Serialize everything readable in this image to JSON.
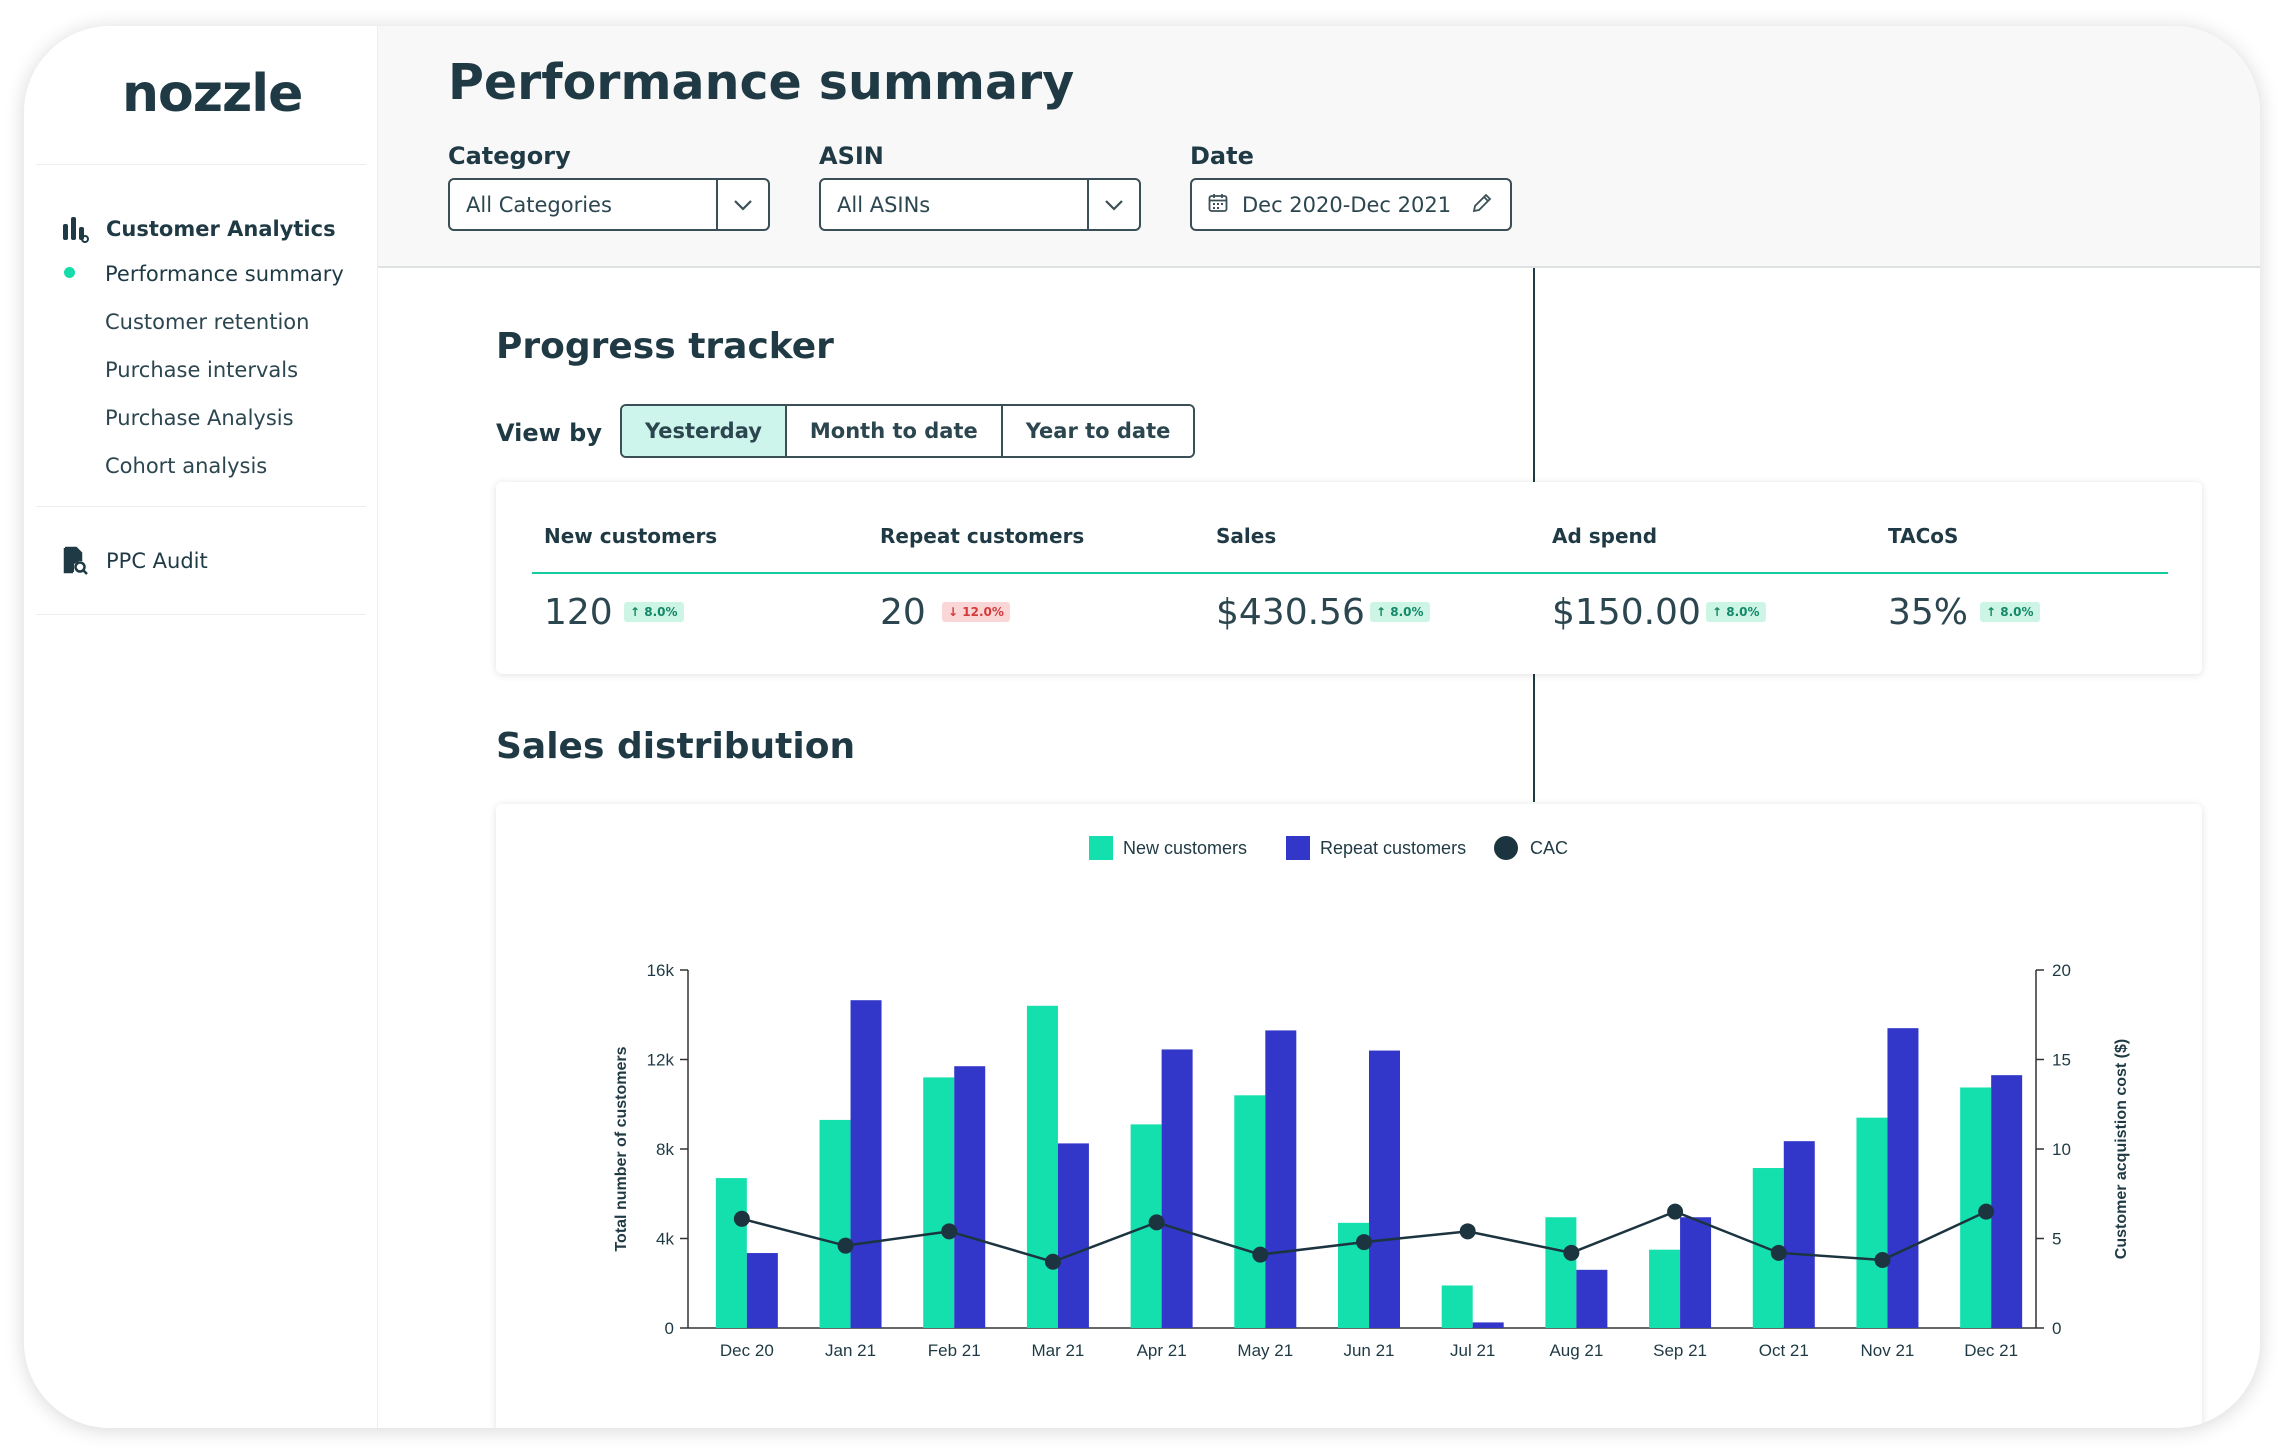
{
  "app": {
    "logo": "nozzle"
  },
  "sidebar": {
    "sections": [
      {
        "label": "Customer Analytics",
        "icon": "bar-chart-icon"
      },
      {
        "label": "PPC Audit",
        "icon": "document-search-icon"
      }
    ],
    "items": [
      {
        "label": "Performance summary",
        "active": true
      },
      {
        "label": "Customer retention"
      },
      {
        "label": "Purchase intervals"
      },
      {
        "label": "Purchase Analysis"
      },
      {
        "label": "Cohort analysis"
      }
    ]
  },
  "header": {
    "title": "Performance summary",
    "filters": {
      "category": {
        "label": "Category",
        "value": "All Categories"
      },
      "asin": {
        "label": "ASIN",
        "value": "All ASINs"
      },
      "date": {
        "label": "Date",
        "value": "Dec 2020-Dec 2021"
      }
    }
  },
  "progress": {
    "title": "Progress tracker",
    "view_by_label": "View by",
    "views": [
      "Yesterday",
      "Month to date",
      "Year to date"
    ],
    "active_view": "Yesterday",
    "kpis": [
      {
        "label": "New customers",
        "value": "120",
        "change": "8.0%",
        "direction": "up"
      },
      {
        "label": "Repeat customers",
        "value": "20",
        "change": "12.0%",
        "direction": "down"
      },
      {
        "label": "Sales",
        "value": "$430.56",
        "change": "8.0%",
        "direction": "up"
      },
      {
        "label": "Ad spend",
        "value": "$150.00",
        "change": "8.0%",
        "direction": "up"
      },
      {
        "label": "TACoS",
        "value": "35%",
        "change": "8.0%",
        "direction": "up"
      }
    ]
  },
  "distribution": {
    "title": "Sales distribution"
  },
  "colors": {
    "accent": "#15dcaa",
    "new": "#14e0ad",
    "repeat": "#3337c9",
    "cac": "#1c3440",
    "text": "#1f3a44"
  },
  "chart_data": {
    "type": "bar",
    "categories": [
      "Dec 20",
      "Jan 21",
      "Feb 21",
      "Mar 21",
      "Apr 21",
      "May 21",
      "Jun 21",
      "Jul 21",
      "Aug 21",
      "Sep 21",
      "Oct 21",
      "Nov 21",
      "Dec 21"
    ],
    "series": [
      {
        "name": "New customers",
        "values": [
          6700,
          9300,
          11200,
          14400,
          9100,
          10400,
          4700,
          1900,
          4950,
          3500,
          7150,
          9400,
          10750
        ]
      },
      {
        "name": "Repeat customers",
        "values": [
          3350,
          14650,
          11700,
          8250,
          12450,
          13300,
          12400,
          250,
          2600,
          4950,
          8350,
          13400,
          11300
        ]
      }
    ],
    "line_series": {
      "name": "CAC",
      "values": [
        6.1,
        4.6,
        5.4,
        3.7,
        5.9,
        4.1,
        4.8,
        5.4,
        4.2,
        6.5,
        4.2,
        3.8,
        6.5
      ]
    },
    "ylabel": "Total number of customers",
    "y2label": "Customer acquistion cost ($)",
    "ylim": [
      0,
      16000
    ],
    "y2lim": [
      0,
      20
    ],
    "yticks": [
      "0",
      "4k",
      "8k",
      "12k",
      "16k"
    ],
    "y2ticks": [
      "0",
      "5",
      "10",
      "15",
      "20"
    ],
    "legend": "top-center",
    "grid": false
  }
}
